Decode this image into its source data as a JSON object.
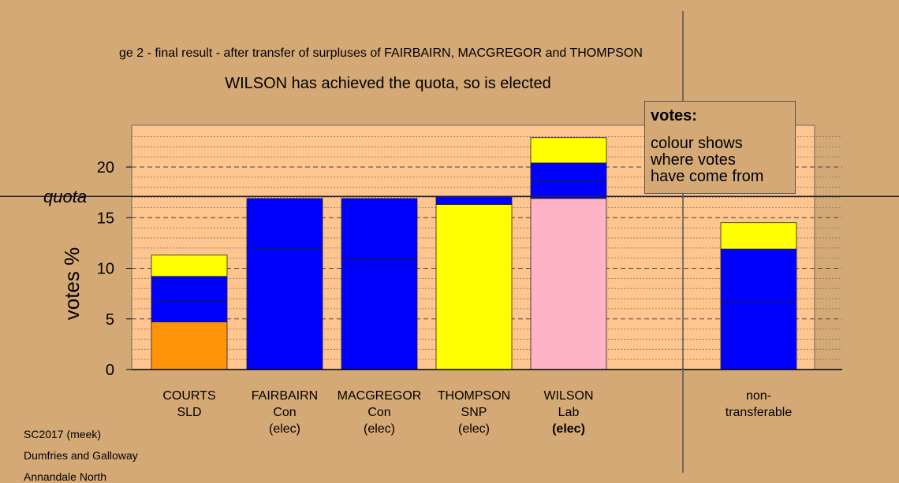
{
  "chart_data": {
    "type": "bar",
    "title": "ge 2 - final result - after transfer of surpluses of FAIRBAIRN, MACGREGOR and THOMPSON",
    "subtitle": "WILSON has achieved the quota, so is elected",
    "ylabel": "votes %",
    "ylim": [
      0,
      24
    ],
    "yticks": [
      0,
      5,
      10,
      15,
      20
    ],
    "quota": 17.1,
    "quota_label": "quota",
    "grid": true,
    "candidates": [
      {
        "name": "COURTS",
        "party": "SLD",
        "status": "",
        "segments": [
          {
            "color": "#ff9408",
            "value": 4.7
          },
          {
            "color": "#0000ff",
            "value": 2.1
          },
          {
            "color": "#0000ff",
            "value": 2.4
          },
          {
            "color": "#ffff00",
            "value": 2.1
          }
        ]
      },
      {
        "name": "FAIRBAIRN",
        "party": "Con",
        "status": "(elec)",
        "segments": [
          {
            "color": "#0000ff",
            "value": 11.9
          },
          {
            "color": "#0000ff",
            "value": 5.0
          }
        ]
      },
      {
        "name": "MACGREGOR",
        "party": "Con",
        "status": "(elec)",
        "segments": [
          {
            "color": "#0000ff",
            "value": 10.9
          },
          {
            "color": "#0000ff",
            "value": 6.0
          }
        ]
      },
      {
        "name": "THOMPSON",
        "party": "SNP",
        "status": "(elec)",
        "segments": [
          {
            "color": "#ffff00",
            "value": 16.3
          },
          {
            "color": "#0000ff",
            "value": 0.8
          }
        ]
      },
      {
        "name": "WILSON",
        "party": "Lab",
        "status": "(elec)",
        "status_bold": true,
        "segments": [
          {
            "color": "#ffb3c6",
            "value": 16.9
          },
          {
            "color": "#0000ff",
            "value": 1.7
          },
          {
            "color": "#0000ff",
            "value": 1.8
          },
          {
            "color": "#ffff00",
            "value": 2.5
          }
        ]
      },
      {
        "name": "non-",
        "party": "transferable",
        "status": "",
        "segments": [
          {
            "color": "#0000ff",
            "value": 6.7
          },
          {
            "color": "#0000ff",
            "value": 5.2
          },
          {
            "color": "#ffff00",
            "value": 2.6
          }
        ]
      }
    ]
  },
  "legend": {
    "title": "votes:",
    "line1": "colour shows",
    "line2": "where votes",
    "line3": "have come from"
  },
  "footer": {
    "line1": "SC2017 (meek)",
    "line2": "Dumfries and Galloway",
    "line3": "Annandale North"
  }
}
